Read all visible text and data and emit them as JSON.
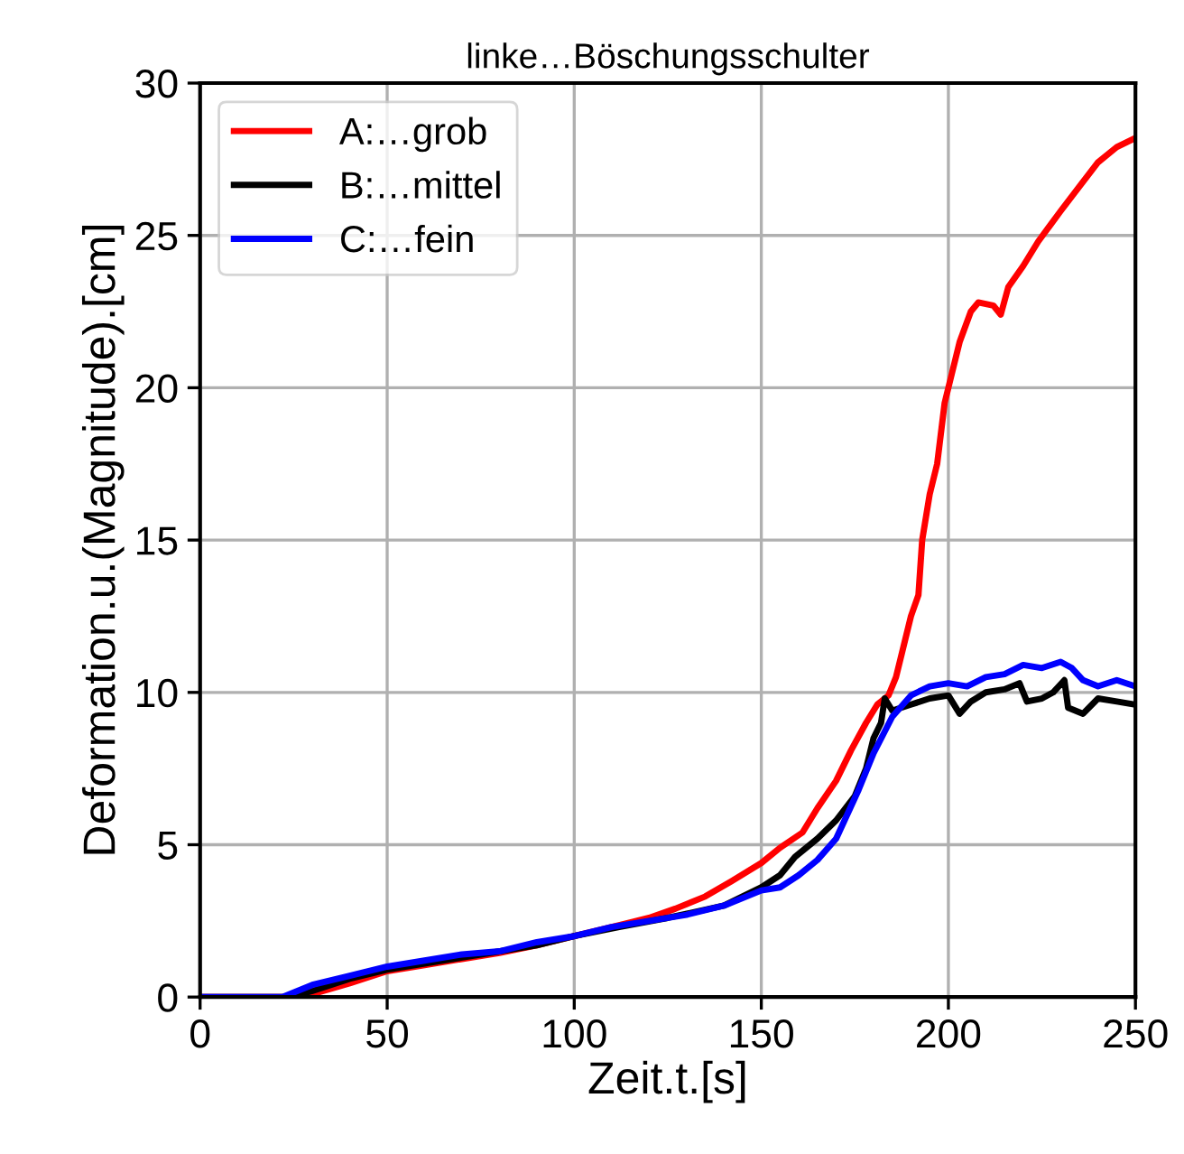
{
  "chart_data": {
    "type": "line",
    "title": "linke…Böschungsschulter",
    "xlabel": "Zeit.t.[s]",
    "ylabel": "Deformation.u.(Magnitude).[cm]",
    "xlim": [
      0,
      250
    ],
    "ylim": [
      0,
      30
    ],
    "xticks": [
      0,
      50,
      100,
      150,
      200,
      250
    ],
    "yticks": [
      0,
      5,
      10,
      15,
      20,
      25,
      30
    ],
    "grid": true,
    "legend": "top left",
    "line_style": "solid",
    "marker": "none",
    "series": [
      {
        "name": "A:…grob",
        "color": "#ff0000",
        "x": [
          0,
          25,
          30,
          40,
          50,
          60,
          70,
          80,
          90,
          100,
          110,
          120,
          127,
          135,
          142,
          150,
          155,
          161,
          165,
          170,
          174,
          178,
          181,
          184,
          186,
          188,
          190,
          192,
          193,
          195,
          197,
          199,
          201,
          203,
          206,
          208,
          212,
          214,
          216,
          220,
          224,
          227,
          230,
          235,
          240,
          245,
          250
        ],
        "values": [
          0,
          0,
          0.1,
          0.45,
          0.85,
          1.05,
          1.25,
          1.45,
          1.7,
          2.0,
          2.3,
          2.6,
          2.9,
          3.3,
          3.8,
          4.4,
          4.9,
          5.4,
          6.2,
          7.1,
          8.1,
          9.0,
          9.6,
          9.9,
          10.5,
          11.5,
          12.5,
          13.2,
          15,
          16.5,
          17.5,
          19.5,
          20.5,
          21.5,
          22.5,
          22.8,
          22.7,
          22.4,
          23.3,
          24,
          24.8,
          25.3,
          25.8,
          26.6,
          27.4,
          27.9,
          28.2
        ]
      },
      {
        "name": "B:…mittel",
        "color": "#000000",
        "x": [
          0,
          24,
          30,
          40,
          50,
          60,
          75,
          90,
          100,
          112,
          125,
          140,
          150,
          155,
          159,
          165,
          170,
          175,
          178,
          180,
          182,
          183,
          185,
          190,
          195,
          200,
          203,
          206,
          210,
          215,
          219,
          221,
          225,
          228,
          231,
          232,
          236,
          240,
          245,
          250
        ],
        "values": [
          0,
          0,
          0.2,
          0.6,
          0.9,
          1.1,
          1.4,
          1.7,
          2.0,
          2.3,
          2.6,
          3.0,
          3.6,
          4.0,
          4.6,
          5.2,
          5.8,
          6.6,
          7.5,
          8.5,
          9.0,
          9.8,
          9.4,
          9.6,
          9.8,
          9.9,
          9.3,
          9.7,
          10.0,
          10.1,
          10.3,
          9.7,
          9.8,
          10.0,
          10.4,
          9.5,
          9.3,
          9.8,
          9.7,
          9.6
        ]
      },
      {
        "name": "C:…fein",
        "color": "#0000ff",
        "x": [
          0,
          22,
          30,
          40,
          50,
          60,
          70,
          80,
          90,
          100,
          110,
          120,
          130,
          140,
          150,
          155,
          160,
          165,
          170,
          173,
          176,
          180,
          185,
          190,
          195,
          200,
          205,
          210,
          215,
          220,
          225,
          230,
          233,
          236,
          240,
          245,
          250
        ],
        "values": [
          0,
          0,
          0.4,
          0.7,
          1.0,
          1.2,
          1.4,
          1.5,
          1.8,
          2.0,
          2.3,
          2.5,
          2.7,
          3.0,
          3.5,
          3.6,
          4.0,
          4.5,
          5.2,
          6.0,
          6.8,
          8.0,
          9.2,
          9.9,
          10.2,
          10.3,
          10.2,
          10.5,
          10.6,
          10.9,
          10.8,
          11.0,
          10.8,
          10.4,
          10.2,
          10.4,
          10.2
        ]
      }
    ]
  }
}
